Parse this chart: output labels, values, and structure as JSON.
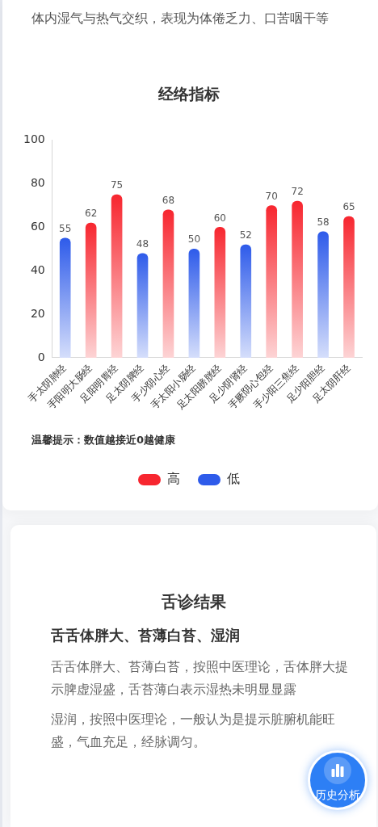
{
  "chart_data": {
    "type": "bar",
    "title": "经络指标",
    "categories": [
      "手太阴肺经",
      "手阳明大肠经",
      "足阳明胃经",
      "足太阴脾经",
      "手少阴心经",
      "手太阳小肠经",
      "足太阳膀胱经",
      "足少阴肾经",
      "手厥阴心包经",
      "手少阳三焦经",
      "足少阳胆经",
      "足太阴肝经"
    ],
    "series": [
      {
        "name": "高",
        "color": "#f7262f",
        "values": [
          null,
          62,
          75,
          null,
          68,
          null,
          60,
          null,
          70,
          72,
          null,
          65
        ]
      },
      {
        "name": "低",
        "color": "#2e5bea",
        "values": [
          55,
          null,
          null,
          48,
          null,
          50,
          null,
          52,
          null,
          null,
          58,
          null
        ]
      }
    ],
    "ylim": [
      0,
      100
    ],
    "yticks": [
      0,
      20,
      40,
      60,
      80,
      100
    ],
    "legend": "bottom",
    "data_labels": true,
    "annotations": [
      "体内湿气与热气交织，表现为体倦乏力、口苦咽干等",
      "温馨提示：数值越接近0越健康",
      "舌诊结果",
      "舌舌体胖大、苔薄白苔、湿润",
      "舌舌体胖大、苔薄白苔，按照中医理论，舌体胖大提示脾虚湿盛，舌苔薄白表示湿热未明显显露",
      "湿润，按照中医理论，一般认为是提示脏腑机能旺盛，气血充足，经脉调匀。",
      "历史分析"
    ]
  }
}
